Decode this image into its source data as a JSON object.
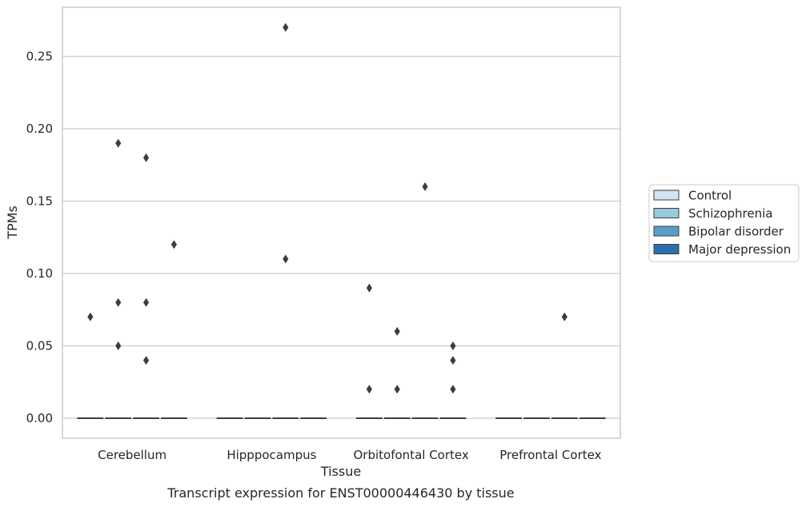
{
  "chart_data": {
    "type": "box",
    "title": "",
    "xlabel": "Tissue",
    "ylabel": "TPMs",
    "caption": "Transcript expression for ENST00000446430 by tissue",
    "ylim": [
      -0.013,
      0.285
    ],
    "yticks": [
      0.0,
      0.05,
      0.1,
      0.15,
      0.2,
      0.25
    ],
    "ytick_labels": [
      "0.00",
      "0.05",
      "0.10",
      "0.15",
      "0.20",
      "0.25"
    ],
    "grid": "horizontal",
    "legend_position": "right",
    "categories": [
      "Cerebellum",
      "Hipppocampus",
      "Orbitofontal Cortex",
      "Prefrontal Cortex"
    ],
    "series": [
      {
        "name": "Control",
        "color": "#d2e3f3",
        "medians": [
          0.0,
          0.0,
          0.0,
          0.0
        ],
        "outliers": [
          [
            0.07
          ],
          [],
          [
            0.09,
            0.02
          ],
          []
        ]
      },
      {
        "name": "Schizophrenia",
        "color": "#9ac8e0",
        "medians": [
          0.0,
          0.0,
          0.0,
          0.0
        ],
        "outliers": [
          [
            0.19,
            0.08,
            0.05
          ],
          [],
          [
            0.06,
            0.02
          ],
          []
        ]
      },
      {
        "name": "Bipolar disorder",
        "color": "#5a9ec9",
        "medians": [
          0.0,
          0.0,
          0.0,
          0.0
        ],
        "outliers": [
          [
            0.18,
            0.08,
            0.04
          ],
          [
            0.27,
            0.11
          ],
          [
            0.16
          ],
          [
            0.07
          ]
        ]
      },
      {
        "name": "Major depression",
        "color": "#2a6fad",
        "medians": [
          0.0,
          0.0,
          0.0,
          0.0
        ],
        "outliers": [
          [
            0.12
          ],
          [],
          [
            0.05,
            0.04,
            0.02
          ],
          []
        ]
      }
    ]
  }
}
